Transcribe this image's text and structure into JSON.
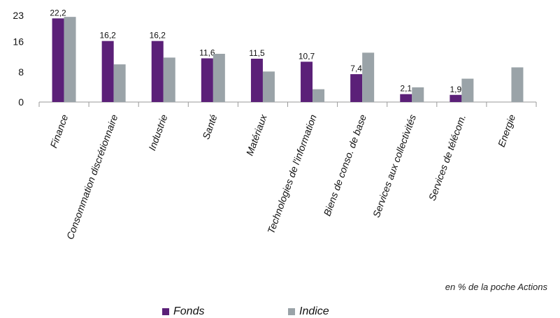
{
  "colors": {
    "fonds": "#5b2078",
    "indice": "#9aa3a8",
    "axis": "#9a9a9a",
    "text": "#111111"
  },
  "chart_data": {
    "type": "bar",
    "title": "",
    "xlabel": "",
    "ylabel": "",
    "ylim": [
      0,
      23
    ],
    "yticks": [
      0,
      8,
      16,
      23
    ],
    "grid": false,
    "legend_position": "bottom",
    "note": "en % de la poche Actions",
    "categories": [
      "Finance",
      "Consommation discrétionnaire",
      "Industrie",
      "Santé",
      "Matériaux",
      "Technologies de l'information",
      "Biens de conso. de base",
      "Services aux collectivités",
      "Services de télécom.",
      "Energie"
    ],
    "series": [
      {
        "name": "Fonds",
        "values": [
          22.2,
          16.2,
          16.2,
          11.6,
          11.5,
          10.7,
          7.4,
          2.1,
          1.9,
          null
        ],
        "labels": [
          "22,2",
          "16,2",
          "16,2",
          "11,6",
          "11,5",
          "10,7",
          "7,4",
          "2,1",
          "1,9",
          ""
        ]
      },
      {
        "name": "Indice",
        "values": [
          22.6,
          10.0,
          11.8,
          12.8,
          8.1,
          3.4,
          13.1,
          3.9,
          6.2,
          9.2
        ]
      }
    ]
  }
}
